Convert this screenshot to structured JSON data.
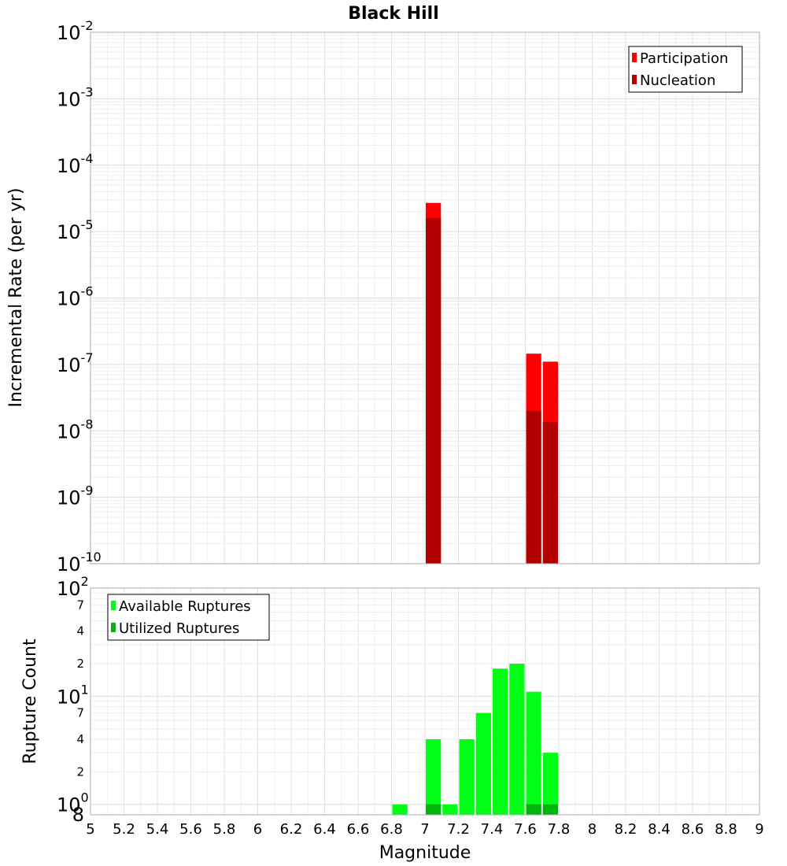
{
  "chart_data": {
    "title": "Black Hill",
    "xlabel": "Magnitude",
    "xlim": [
      5,
      9
    ],
    "x_ticks": [
      "5",
      "5.2",
      "5.4",
      "5.6",
      "5.8",
      "6",
      "6.2",
      "6.4",
      "6.6",
      "6.8",
      "7",
      "7.2",
      "7.4",
      "7.6",
      "7.8",
      "8",
      "8.2",
      "8.4",
      "8.6",
      "8.8",
      "9"
    ],
    "panels": [
      {
        "type": "bar",
        "ylabel": "Incremental Rate (per yr)",
        "yscale": "log",
        "ylim": [
          1e-10,
          0.01
        ],
        "y_ticks": [
          {
            "base": "10",
            "exp": "-2"
          },
          {
            "base": "10",
            "exp": "-3"
          },
          {
            "base": "10",
            "exp": "-4"
          },
          {
            "base": "10",
            "exp": "-5"
          },
          {
            "base": "10",
            "exp": "-6"
          },
          {
            "base": "10",
            "exp": "-7"
          },
          {
            "base": "10",
            "exp": "-8"
          },
          {
            "base": "10",
            "exp": "-9"
          },
          {
            "base": "10",
            "exp": "-10"
          }
        ],
        "legend_position": "top-right",
        "series": [
          {
            "name": "Participation",
            "color": "#ff0000",
            "x": [
              7.05,
              7.65,
              7.75
            ],
            "values": [
              2.7e-05,
              1.45e-07,
              1.1e-07
            ]
          },
          {
            "name": "Nucleation",
            "color": "#b30000",
            "x": [
              7.05,
              7.65,
              7.75
            ],
            "values": [
              1.6e-05,
              2e-08,
              1.35e-08
            ]
          }
        ]
      },
      {
        "type": "bar",
        "ylabel": "Rupture Count",
        "yscale": "log",
        "ylim": [
          0.8,
          100
        ],
        "y_ticks": [
          {
            "base": "10",
            "exp": "2"
          },
          {
            "base": "10",
            "exp": "1"
          },
          {
            "base": "10",
            "exp": "0"
          }
        ],
        "y_minor_labels": [
          "7",
          "4",
          "2",
          "7",
          "4",
          "2",
          "8"
        ],
        "legend_position": "top-left",
        "series": [
          {
            "name": "Available Ruptures",
            "color": "#00ff14",
            "x": [
              6.85,
              7.05,
              7.15,
              7.25,
              7.35,
              7.45,
              7.55,
              7.65,
              7.75
            ],
            "values": [
              1,
              4,
              1,
              4,
              7,
              18,
              20,
              11,
              3
            ]
          },
          {
            "name": "Utilized Ruptures",
            "color": "#00b30e",
            "x": [
              7.05,
              7.65,
              7.75
            ],
            "values": [
              1,
              1,
              1
            ]
          }
        ]
      }
    ]
  }
}
